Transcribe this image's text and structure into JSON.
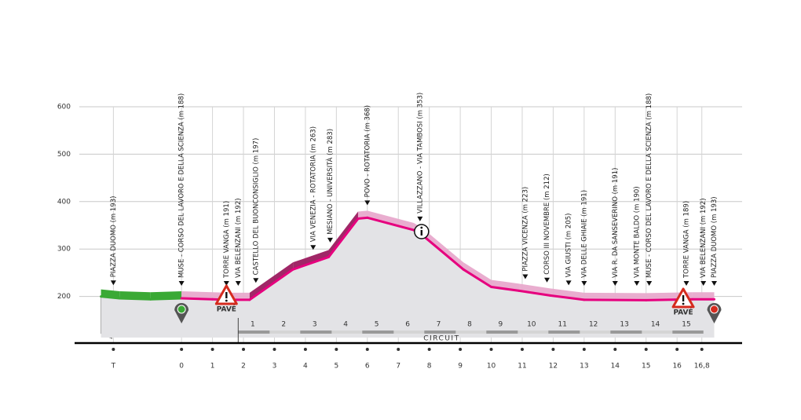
{
  "chart_data": {
    "type": "line",
    "x": [
      -2.6,
      -2,
      -1,
      0,
      1,
      1.5,
      2.2,
      3.6,
      4.75,
      5.7,
      6.0,
      7.5,
      7.8,
      9.1,
      10,
      10.9,
      11.9,
      13,
      15,
      16.5,
      17.2
    ],
    "values": [
      200,
      196,
      194,
      196,
      194,
      193,
      193,
      257,
      283,
      364,
      366,
      340,
      328,
      257,
      220,
      212,
      202,
      193,
      192,
      194,
      194
    ],
    "color": "#e6007e",
    "neutral_color": "#3aa935",
    "ylim": [
      100,
      600
    ],
    "yticks": [
      200,
      300,
      400,
      500,
      600
    ],
    "xlim": [
      -3.3,
      18.1
    ],
    "xticks": [
      {
        "value": -2.2,
        "label": "T"
      },
      0,
      1,
      2,
      3,
      4,
      5,
      6,
      7,
      8,
      9,
      10,
      11,
      12,
      13,
      14,
      15,
      16,
      {
        "value": 16.8,
        "label": "16,8"
      }
    ],
    "grid": true,
    "circuit_label": "CIRCUIT",
    "laps": [
      1,
      2,
      3,
      4,
      5,
      6,
      7,
      8,
      9,
      10,
      11,
      12,
      13,
      14,
      15
    ],
    "pave_label": "PAVÉ",
    "waypoints": [
      {
        "x": -2.2,
        "label": "PIAZZA DUOMO (m 193)"
      },
      {
        "x": 0,
        "label": "MUSE - CORSO DEL LAVORO E DELLA SCIENZA (m 188)"
      },
      {
        "x": 1.45,
        "label": "TORRE VANGA (m 191)"
      },
      {
        "x": 1.83,
        "label": "VIA BELENZANI (m 192)"
      },
      {
        "x": 2.4,
        "label": "CASTELLO DEL BUONCONSIGLIO (m 197)"
      },
      {
        "x": 4.25,
        "label": "VIA VENEZIA - ROTATORIA (m 263)"
      },
      {
        "x": 4.8,
        "label": "MESIANO - UNIVERSITÀ (m 283)"
      },
      {
        "x": 6.0,
        "label": "POVO - ROTATORIA (m 368)"
      },
      {
        "x": 7.7,
        "label": "VILLAZZANO - VIA TAMBOSI (m 353)"
      },
      {
        "x": 11.1,
        "label": "PIAZZA VICENZA (m 223)"
      },
      {
        "x": 11.8,
        "label": "CORSO III NOVEMBRE (m 212)"
      },
      {
        "x": 12.5,
        "label": "VIA GIUSTI (m 205)"
      },
      {
        "x": 13.0,
        "label": "VIA DELLE GHIAIE (m 191)"
      },
      {
        "x": 14.0,
        "label": "VIA R. DA SANSEVERINO (m 191)"
      },
      {
        "x": 14.7,
        "label": "VIA MONTE BALDO (m 190)"
      },
      {
        "x": 15.1,
        "label": "MUSE - CORSO DEL LAVORO E DELLA SCIENZA (m 188)"
      },
      {
        "x": 16.3,
        "label": "TORRE VANGA (m 189)"
      },
      {
        "x": 16.85,
        "label": "VIA BELENZANI (m 192)"
      },
      {
        "x": 17.2,
        "label": "PIAZZA DUOMO (m 193)"
      }
    ]
  }
}
